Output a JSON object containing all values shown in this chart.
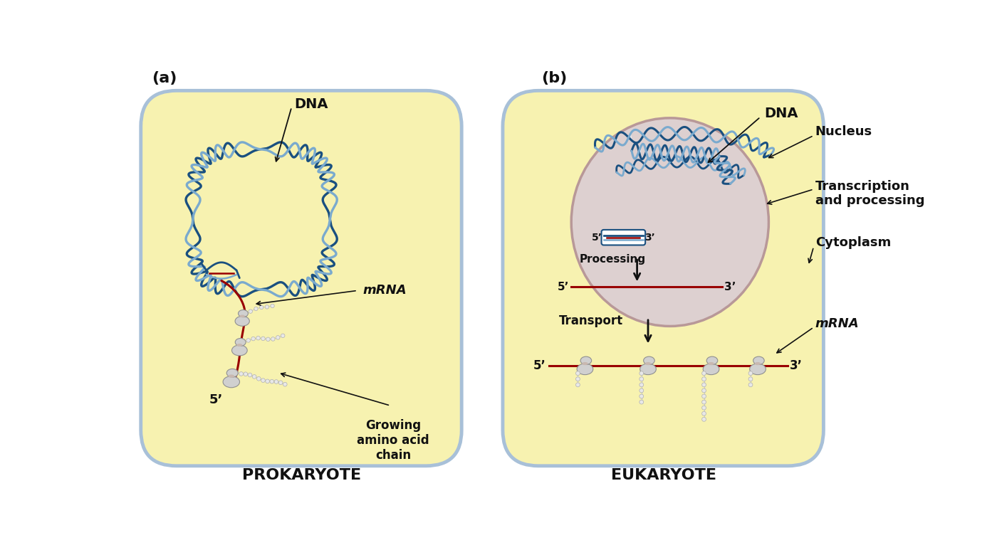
{
  "bg_color": "#ffffff",
  "cell_fill": "#f7f2b0",
  "cell_border": "#a8c0d8",
  "nucleus_fill": "#ddd0d0",
  "nucleus_border": "#b89898",
  "dna_dark": "#1a5080",
  "dna_light": "#7aaace",
  "dna_white": "#e8f0f8",
  "mrna_color": "#990000",
  "rib_fill": "#d0d0d0",
  "rib_border": "#909090",
  "rib_notch": "#c8b8b0",
  "aa_fill": "#e8e8e8",
  "aa_border": "#b0b0b0",
  "lc": "#111111",
  "title_a": "(a)",
  "title_b": "(b)",
  "pro_label": "PROKARYOTE",
  "euk_label": "EUKARYOTE",
  "dna_lbl": "DNA",
  "mrna_lbl": "mRNA",
  "nucleus_lbl": "Nucleus",
  "trans_lbl": "Transcription\nand processing",
  "cyto_lbl": "Cytoplasm",
  "proc_lbl": "Processing",
  "trans2_lbl": "Transport",
  "grow_lbl": "Growing\namino acid\nchain",
  "p5": "5’",
  "p3": "3’"
}
